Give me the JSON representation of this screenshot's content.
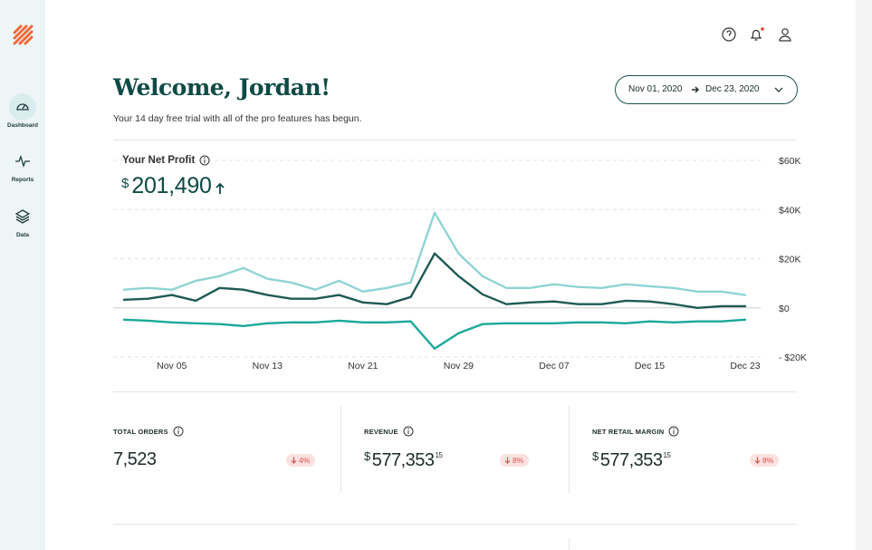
{
  "sidebar": {
    "items": [
      "Dashboard",
      "Reports",
      "Data"
    ]
  },
  "header": {
    "title": "Welcome, Jordan!",
    "subtitle": "Your 14 day free trial with all of the pro features has begun.",
    "date_range": {
      "start": "Nov 01, 2020",
      "end": "Dec 23, 2020"
    }
  },
  "net_profit": {
    "label": "Your Net Profit",
    "currency": "$",
    "value": "201,490"
  },
  "chart_data": {
    "type": "line",
    "categories": [
      null,
      null,
      "Nov 05",
      null,
      null,
      null,
      "Nov 13",
      null,
      null,
      null,
      "Nov 21",
      null,
      null,
      null,
      "Nov 29",
      null,
      null,
      null,
      "Dec 07",
      null,
      null,
      null,
      "Dec 15",
      null,
      null,
      null,
      "Dec 23"
    ],
    "series": [
      {
        "color": "#8fd4d3",
        "values": [
          7400,
          8100,
          7400,
          11000,
          12900,
          16200,
          11800,
          10300,
          7400,
          11000,
          6600,
          8100,
          10300,
          38700,
          22100,
          12900,
          8100,
          8100,
          9600,
          8500,
          8100,
          9600,
          8800,
          8100,
          6600,
          6600,
          5200
        ]
      },
      {
        "color": "#1f5a55",
        "values": [
          3300,
          3700,
          5200,
          2900,
          8100,
          7400,
          5200,
          3700,
          3700,
          5200,
          2200,
          1500,
          4400,
          22100,
          12900,
          5500,
          1500,
          2200,
          2600,
          1500,
          1500,
          2900,
          2600,
          1500,
          0,
          700,
          700
        ]
      },
      {
        "color": "#1aa89a",
        "values": [
          -4800,
          -5200,
          -5900,
          -6300,
          -6600,
          -7400,
          -6300,
          -5900,
          -5900,
          -5200,
          -5900,
          -5900,
          -5500,
          -16600,
          -10300,
          -6600,
          -6300,
          -6300,
          -6300,
          -5900,
          -5900,
          -6300,
          -5500,
          -5900,
          -5500,
          -5500,
          -4800
        ]
      }
    ],
    "ylim": [
      -20000,
      60000
    ],
    "yticks": [
      {
        "value": -20000,
        "label": "- $20K"
      },
      {
        "value": 0,
        "label": "$0"
      },
      {
        "value": 20000,
        "label": "$20K"
      },
      {
        "value": 40000,
        "label": "$40K"
      },
      {
        "value": 60000,
        "label": "$60K"
      }
    ],
    "grid": true
  },
  "stats": [
    {
      "label": "TOTAL ORDERS",
      "value": "7,523",
      "change": "4%"
    },
    {
      "label": "REVENUE",
      "currency": "$",
      "value": "577,353",
      "cents": "15",
      "change": "8%"
    },
    {
      "label": "NET RETAIL MARGIN",
      "currency": "$",
      "value": "577,353",
      "cents": "15",
      "change": "8%"
    }
  ]
}
